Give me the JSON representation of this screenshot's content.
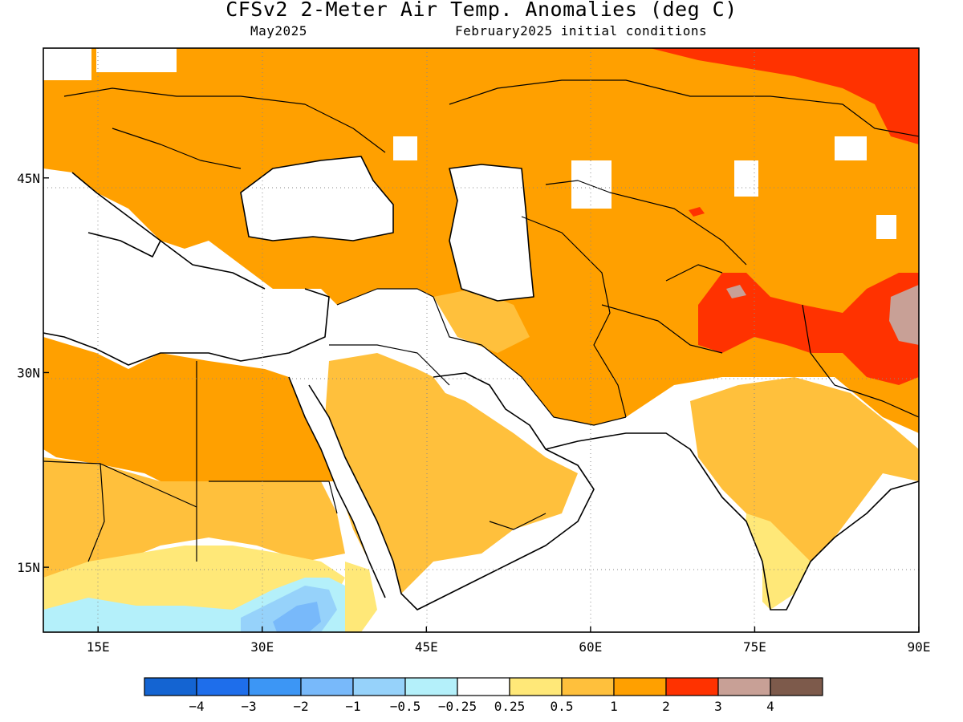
{
  "title": "CFSv2 2-Meter Air Temp. Anomalies (deg C)",
  "subtitle_left": "May2025",
  "subtitle_right": "February2025 initial conditions",
  "map": {
    "lon_range": [
      10,
      90
    ],
    "lat_range": [
      10,
      55
    ],
    "x_ticks": [
      {
        "lon": 15,
        "label": "15E"
      },
      {
        "lon": 30,
        "label": "30E"
      },
      {
        "lon": 45,
        "label": "45E"
      },
      {
        "lon": 60,
        "label": "60E"
      },
      {
        "lon": 75,
        "label": "75E"
      },
      {
        "lon": 90,
        "label": "90E"
      }
    ],
    "y_ticks": [
      {
        "lat": 45,
        "label": "45N"
      },
      {
        "lat": 30,
        "label": "30N"
      },
      {
        "lat": 15,
        "label": "15N"
      }
    ]
  },
  "colorbar": {
    "colors": [
      "#1464d2",
      "#1e6eeb",
      "#3c96f5",
      "#78b9fa",
      "#96d2fa",
      "#b4f0fa",
      "#ffffff",
      "#ffe878",
      "#ffc03c",
      "#ffa000",
      "#ff3200",
      "#c8a096",
      "#7d5a4b"
    ],
    "labels": [
      "−4",
      "−3",
      "−2",
      "−1",
      "−0.5",
      "−0.25",
      "0.25",
      "0.5",
      "1",
      "2",
      "3",
      "4"
    ]
  },
  "anomaly_regions": [
    {
      "name": "europe-warm",
      "level": "1 to 2",
      "color": "#ffa000"
    },
    {
      "name": "central-asia-warm",
      "level": "1 to 2",
      "color": "#ffa000"
    },
    {
      "name": "mongolia-hot",
      "level": "2 to 3",
      "color": "#ff3200"
    },
    {
      "name": "tibet-hot",
      "level": "2 to 3",
      "color": "#ff3200"
    },
    {
      "name": "tibet-very-hot",
      "level": "3 to 4",
      "color": "#c8a096"
    },
    {
      "name": "arabia-warm",
      "level": "0.5 to 1",
      "color": "#ffc03c"
    },
    {
      "name": "india-warm",
      "level": "0.5 to 1",
      "color": "#ffc03c"
    },
    {
      "name": "sahel-mild",
      "level": "0.25 to 0.5",
      "color": "#ffe878"
    },
    {
      "name": "east-africa-cool",
      "level": "-0.5 to -1",
      "color": "#96d2fa"
    }
  ]
}
